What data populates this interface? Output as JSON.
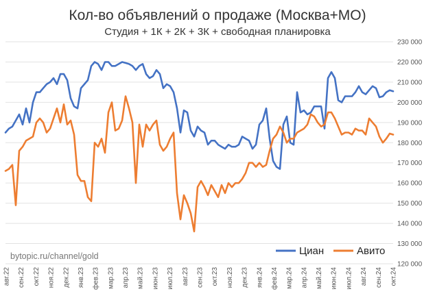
{
  "chart_data": {
    "type": "line",
    "title": "Кол-во объявлений о продаже (Москва+МО)",
    "subtitle": "Студия + 1К + 2К + 3К + свободная планировка",
    "xlabel": "",
    "ylabel": "",
    "ylim": [
      120000,
      230000
    ],
    "yticks": [
      "120 000",
      "130 000",
      "140 000",
      "150 000",
      "160 000",
      "170 000",
      "180 000",
      "190 000",
      "200 000",
      "210 000",
      "220 000",
      "230 000"
    ],
    "months": [
      "авг.22",
      "сен.22",
      "окт.22",
      "ноя.22",
      "дек.22",
      "янв.23",
      "фев.23",
      "мар.23",
      "апр.23",
      "май.23",
      "июн.23",
      "июл.23",
      "авг.23",
      "сен.23",
      "окт.23",
      "ноя.23",
      "дек.23",
      "янв.24",
      "фев.24",
      "мар.24",
      "апр.24",
      "май.24",
      "июн.24",
      "июл.24",
      "авг.24",
      "сен.24",
      "окт.24"
    ],
    "grid": true,
    "legend_position": "bottom-right",
    "series": [
      {
        "name": "Циан",
        "color": "#4472C4",
        "values": [
          185000,
          187000,
          188000,
          191000,
          194000,
          189000,
          197000,
          190000,
          200000,
          205000,
          205000,
          207000,
          209000,
          210000,
          212000,
          209000,
          214000,
          214000,
          211000,
          202000,
          198000,
          197000,
          207000,
          209000,
          211000,
          218000,
          220000,
          219000,
          216000,
          220000,
          220000,
          218000,
          218000,
          219000,
          220000,
          219500,
          219000,
          218000,
          216000,
          218000,
          219000,
          214000,
          212000,
          213000,
          216000,
          214000,
          207000,
          209000,
          208000,
          205000,
          197000,
          185000,
          196000,
          195000,
          186000,
          183000,
          188000,
          186000,
          185000,
          179000,
          181000,
          181000,
          179000,
          178000,
          177000,
          179000,
          178000,
          178000,
          179000,
          183000,
          182000,
          181000,
          177000,
          179000,
          189000,
          191000,
          197000,
          182000,
          171000,
          168000,
          167000,
          189000,
          193000,
          180000,
          179000,
          205000,
          195000,
          196000,
          194000,
          195000,
          198000,
          198000,
          198000,
          187000,
          212000,
          215000,
          212000,
          201000,
          200000,
          203000,
          203000,
          203000,
          205000,
          208000,
          205000,
          204000,
          206000,
          208000,
          207000,
          202500,
          203000,
          205000,
          206000,
          205500
        ]
      },
      {
        "name": "Авито",
        "color": "#ED7D31",
        "values": [
          166000,
          167000,
          169000,
          149000,
          176000,
          178000,
          181000,
          182000,
          183000,
          190000,
          192000,
          190000,
          185000,
          187000,
          192000,
          197000,
          190000,
          199000,
          189000,
          191000,
          184000,
          164000,
          161000,
          161000,
          153000,
          151000,
          180000,
          178000,
          182000,
          175000,
          195000,
          200000,
          186000,
          187000,
          191000,
          203000,
          197000,
          190000,
          160000,
          189000,
          178000,
          189000,
          186000,
          189000,
          191000,
          179000,
          176000,
          178000,
          182000,
          185000,
          155000,
          142000,
          154000,
          150000,
          145000,
          136000,
          158000,
          161000,
          158000,
          154000,
          159000,
          156000,
          153000,
          159000,
          155000,
          160000,
          158000,
          160000,
          160000,
          162000,
          165000,
          170000,
          170000,
          168000,
          170000,
          168000,
          169000,
          176000,
          182000,
          184000,
          188000,
          185000,
          180000,
          182000,
          182000,
          185000,
          186000,
          187000,
          189000,
          194000,
          193000,
          190000,
          188000,
          189000,
          195000,
          195000,
          192000,
          188000,
          184000,
          185000,
          185000,
          184000,
          187000,
          186000,
          186000,
          184000,
          192000,
          190000,
          188000,
          183000,
          180000,
          182000,
          184500,
          184000
        ]
      }
    ]
  },
  "watermark": "bytopic.ru/channel/gold"
}
